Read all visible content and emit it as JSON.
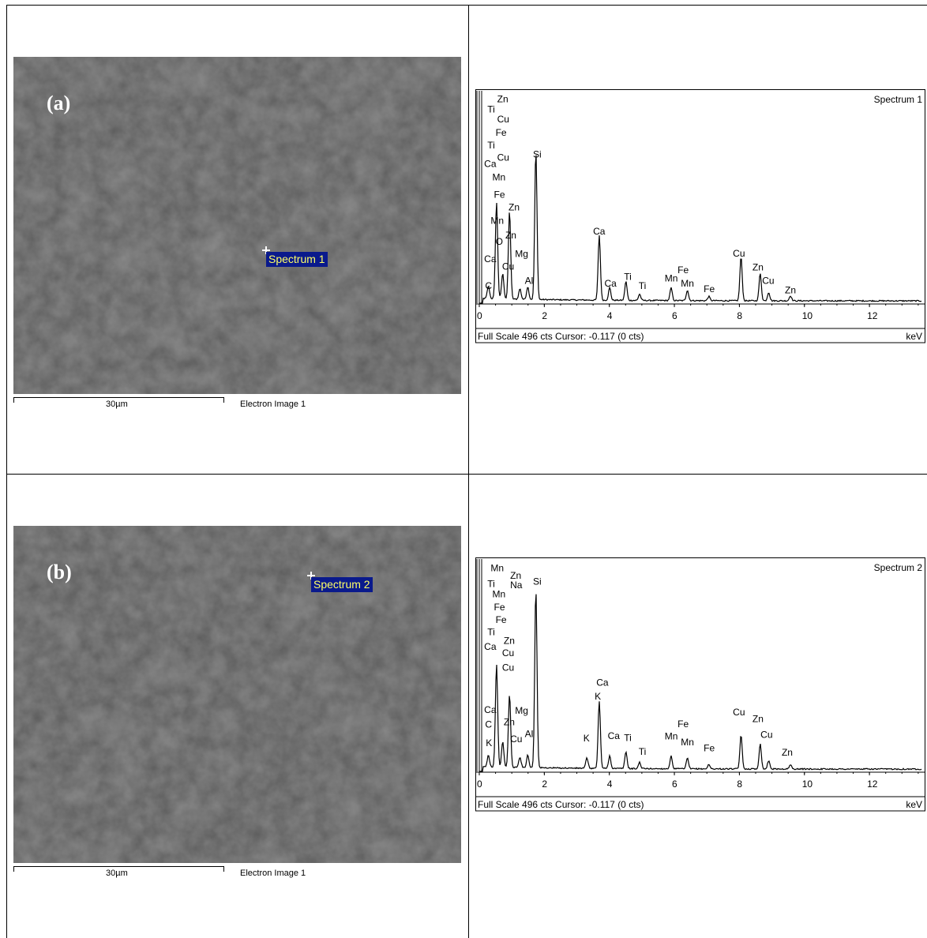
{
  "panels": [
    {
      "label": "(a)",
      "sem": {
        "spectrum_tag": "Spectrum 1",
        "scale_label": "30µm",
        "image_label": "Electron Image 1"
      },
      "chart_data": {
        "type": "line",
        "title": "Spectrum 1",
        "xlabel": "keV",
        "xlim": [
          0,
          13.6
        ],
        "x_ticks": [
          0,
          2,
          4,
          6,
          8,
          10,
          12
        ],
        "footer": "Full Scale 496 cts Cursor: -0.117  (0 cts)",
        "peaks": [
          {
            "x": 0.28,
            "y": 30
          },
          {
            "x": 0.53,
            "y": 230
          },
          {
            "x": 0.72,
            "y": 60
          },
          {
            "x": 0.93,
            "y": 210
          },
          {
            "x": 1.25,
            "y": 25
          },
          {
            "x": 1.49,
            "y": 30
          },
          {
            "x": 1.74,
            "y": 355
          },
          {
            "x": 3.69,
            "y": 155
          },
          {
            "x": 4.01,
            "y": 30
          },
          {
            "x": 4.51,
            "y": 45
          },
          {
            "x": 4.93,
            "y": 15
          },
          {
            "x": 5.9,
            "y": 30
          },
          {
            "x": 6.4,
            "y": 25
          },
          {
            "x": 7.06,
            "y": 10
          },
          {
            "x": 8.05,
            "y": 105
          },
          {
            "x": 8.64,
            "y": 65
          },
          {
            "x": 8.9,
            "y": 20
          },
          {
            "x": 9.57,
            "y": 12
          }
        ],
        "annotations": [
          {
            "text": "Zn",
            "x": 0.55,
            "y": 480
          },
          {
            "text": "Ti",
            "x": 0.25,
            "y": 455
          },
          {
            "text": "Cu",
            "x": 0.55,
            "y": 432
          },
          {
            "text": "Fe",
            "x": 0.5,
            "y": 400
          },
          {
            "text": "Ti",
            "x": 0.25,
            "y": 370
          },
          {
            "text": "Cu",
            "x": 0.55,
            "y": 340
          },
          {
            "text": "Ca",
            "x": 0.15,
            "y": 325
          },
          {
            "text": "Si",
            "x": 1.65,
            "y": 348
          },
          {
            "text": "Mn",
            "x": 0.4,
            "y": 293
          },
          {
            "text": "Fe",
            "x": 0.45,
            "y": 252
          },
          {
            "text": "Zn",
            "x": 0.9,
            "y": 222
          },
          {
            "text": "Mn",
            "x": 0.35,
            "y": 190
          },
          {
            "text": "Zn",
            "x": 0.8,
            "y": 155
          },
          {
            "text": "O",
            "x": 0.5,
            "y": 140
          },
          {
            "text": "Mg",
            "x": 1.1,
            "y": 110
          },
          {
            "text": "Ca",
            "x": 0.15,
            "y": 98
          },
          {
            "text": "Cu",
            "x": 0.7,
            "y": 80
          },
          {
            "text": "Ca",
            "x": 3.5,
            "y": 164
          },
          {
            "text": "Al",
            "x": 1.4,
            "y": 46
          },
          {
            "text": "C",
            "x": 0.18,
            "y": 34
          },
          {
            "text": "Cu",
            "x": 7.8,
            "y": 111
          },
          {
            "text": "Zn",
            "x": 8.4,
            "y": 78
          },
          {
            "text": "Fe",
            "x": 6.1,
            "y": 72
          },
          {
            "text": "Mn",
            "x": 5.7,
            "y": 52
          },
          {
            "text": "Mn",
            "x": 6.2,
            "y": 40
          },
          {
            "text": "Ti",
            "x": 4.45,
            "y": 56
          },
          {
            "text": "Ca",
            "x": 3.85,
            "y": 40
          },
          {
            "text": "Ti",
            "x": 4.9,
            "y": 34
          },
          {
            "text": "Cu",
            "x": 8.7,
            "y": 46
          },
          {
            "text": "Fe",
            "x": 6.9,
            "y": 26
          },
          {
            "text": "Zn",
            "x": 9.4,
            "y": 24
          }
        ]
      }
    },
    {
      "label": "(b)",
      "sem": {
        "spectrum_tag": "Spectrum 2",
        "scale_label": "30µm",
        "image_label": "Electron Image 1"
      },
      "chart_data": {
        "type": "line",
        "title": "Spectrum 2",
        "xlabel": "keV",
        "xlim": [
          0,
          13.6
        ],
        "x_ticks": [
          0,
          2,
          4,
          6,
          8,
          10,
          12
        ],
        "footer": "Full Scale 496 cts Cursor: -0.117  (0 cts)",
        "peaks": [
          {
            "x": 0.28,
            "y": 28
          },
          {
            "x": 0.53,
            "y": 245
          },
          {
            "x": 0.72,
            "y": 60
          },
          {
            "x": 0.93,
            "y": 175
          },
          {
            "x": 1.25,
            "y": 25
          },
          {
            "x": 1.49,
            "y": 30
          },
          {
            "x": 1.74,
            "y": 428
          },
          {
            "x": 3.31,
            "y": 25
          },
          {
            "x": 3.69,
            "y": 160
          },
          {
            "x": 4.01,
            "y": 30
          },
          {
            "x": 4.51,
            "y": 40
          },
          {
            "x": 4.93,
            "y": 15
          },
          {
            "x": 5.9,
            "y": 30
          },
          {
            "x": 6.4,
            "y": 25
          },
          {
            "x": 7.06,
            "y": 10
          },
          {
            "x": 8.05,
            "y": 80
          },
          {
            "x": 8.64,
            "y": 60
          },
          {
            "x": 8.9,
            "y": 20
          },
          {
            "x": 9.57,
            "y": 10
          }
        ],
        "annotations": [
          {
            "text": "Mn",
            "x": 0.35,
            "y": 478
          },
          {
            "text": "Zn",
            "x": 0.95,
            "y": 460
          },
          {
            "text": "Ti",
            "x": 0.25,
            "y": 440
          },
          {
            "text": "Na",
            "x": 0.95,
            "y": 438
          },
          {
            "text": "Si",
            "x": 1.65,
            "y": 446
          },
          {
            "text": "Mn",
            "x": 0.4,
            "y": 416
          },
          {
            "text": "Fe",
            "x": 0.45,
            "y": 385
          },
          {
            "text": "Fe",
            "x": 0.5,
            "y": 355
          },
          {
            "text": "Ti",
            "x": 0.25,
            "y": 325
          },
          {
            "text": "Zn",
            "x": 0.75,
            "y": 305
          },
          {
            "text": "Ca",
            "x": 0.15,
            "y": 290
          },
          {
            "text": "Cu",
            "x": 0.7,
            "y": 275
          },
          {
            "text": "Cu",
            "x": 0.7,
            "y": 240
          },
          {
            "text": "Ca",
            "x": 3.6,
            "y": 205
          },
          {
            "text": "K",
            "x": 3.55,
            "y": 172
          },
          {
            "text": "Ca",
            "x": 0.15,
            "y": 140
          },
          {
            "text": "Mg",
            "x": 1.1,
            "y": 138
          },
          {
            "text": "Zn",
            "x": 0.75,
            "y": 110
          },
          {
            "text": "C",
            "x": 0.18,
            "y": 105
          },
          {
            "text": "Al",
            "x": 1.4,
            "y": 82
          },
          {
            "text": "Cu",
            "x": 0.95,
            "y": 70
          },
          {
            "text": "K",
            "x": 0.2,
            "y": 60
          },
          {
            "text": "K",
            "x": 3.2,
            "y": 72
          },
          {
            "text": "Ca",
            "x": 3.95,
            "y": 77
          },
          {
            "text": "Ti",
            "x": 4.45,
            "y": 73
          },
          {
            "text": "Mn",
            "x": 5.7,
            "y": 76
          },
          {
            "text": "Fe",
            "x": 6.1,
            "y": 106
          },
          {
            "text": "Mn",
            "x": 6.2,
            "y": 62
          },
          {
            "text": "Fe",
            "x": 6.9,
            "y": 48
          },
          {
            "text": "Ti",
            "x": 4.9,
            "y": 40
          },
          {
            "text": "Cu",
            "x": 7.8,
            "y": 134
          },
          {
            "text": "Zn",
            "x": 8.4,
            "y": 118
          },
          {
            "text": "Cu",
            "x": 8.65,
            "y": 80
          },
          {
            "text": "Zn",
            "x": 9.3,
            "y": 38
          }
        ]
      }
    }
  ]
}
